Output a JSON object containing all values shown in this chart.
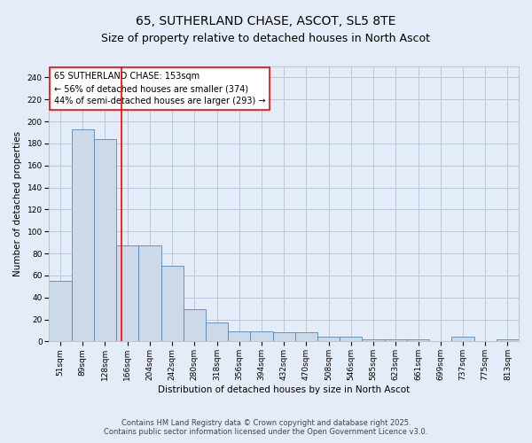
{
  "title_line1": "65, SUTHERLAND CHASE, ASCOT, SL5 8TE",
  "title_line2": "Size of property relative to detached houses in North Ascot",
  "xlabel": "Distribution of detached houses by size in North Ascot",
  "ylabel": "Number of detached properties",
  "categories": [
    "51sqm",
    "89sqm",
    "128sqm",
    "166sqm",
    "204sqm",
    "242sqm",
    "280sqm",
    "318sqm",
    "356sqm",
    "394sqm",
    "432sqm",
    "470sqm",
    "508sqm",
    "546sqm",
    "585sqm",
    "623sqm",
    "661sqm",
    "699sqm",
    "737sqm",
    "775sqm",
    "813sqm"
  ],
  "values": [
    55,
    193,
    184,
    87,
    87,
    69,
    29,
    17,
    9,
    9,
    8,
    8,
    4,
    4,
    2,
    2,
    2,
    0,
    4,
    0,
    2
  ],
  "bar_color": "#ccd9e8",
  "bar_edge_color": "#5588bb",
  "red_line_index": 2.72,
  "annotation_text": "65 SUTHERLAND CHASE: 153sqm\n← 56% of detached houses are smaller (374)\n44% of semi-detached houses are larger (293) →",
  "annotation_box_color": "white",
  "annotation_box_edge_color": "red",
  "red_line_color": "red",
  "ylim": [
    0,
    250
  ],
  "yticks": [
    0,
    20,
    40,
    60,
    80,
    100,
    120,
    140,
    160,
    180,
    200,
    220,
    240
  ],
  "grid_color": "#b8c8dc",
  "background_color": "#e4ecf7",
  "footer_line1": "Contains HM Land Registry data © Crown copyright and database right 2025.",
  "footer_line2": "Contains public sector information licensed under the Open Government Licence v3.0.",
  "title_fontsize": 10,
  "subtitle_fontsize": 9,
  "axis_label_fontsize": 7.5,
  "tick_fontsize": 6.5,
  "annotation_fontsize": 7,
  "footer_fontsize": 6
}
